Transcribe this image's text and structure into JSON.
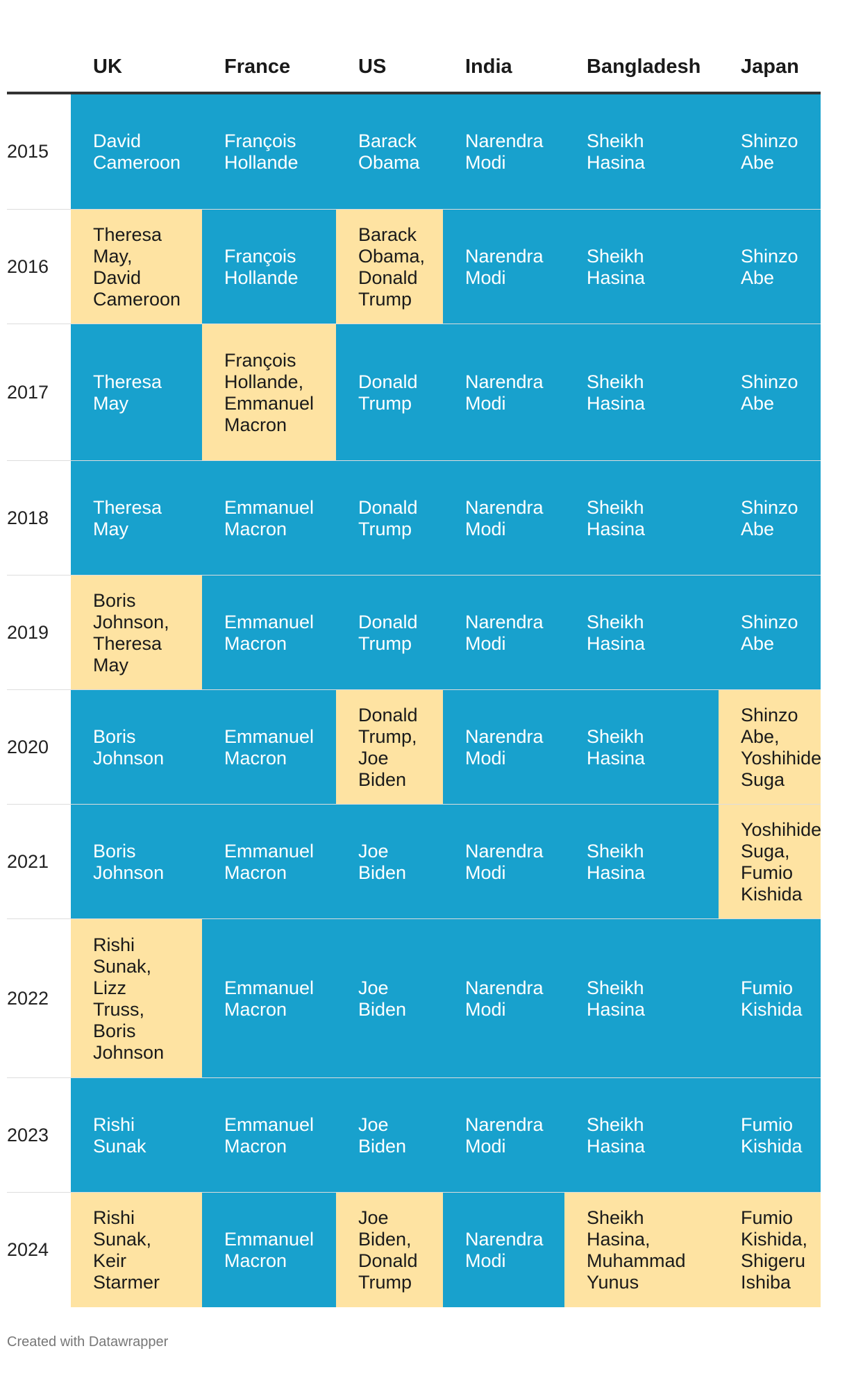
{
  "columns": [
    "UK",
    "France",
    "US",
    "India",
    "Bangladesh",
    "Japan"
  ],
  "colors": {
    "same": "#18a1cd",
    "change": "#fee3a2"
  },
  "chart_data": {
    "type": "table",
    "columns": [
      "UK",
      "France",
      "US",
      "India",
      "Bangladesh",
      "Japan"
    ],
    "rows": [
      {
        "year": "2015",
        "cells": [
          {
            "text": "David\nCameroon",
            "changed": false
          },
          {
            "text": "François\nHollande",
            "changed": false
          },
          {
            "text": "Barack\nObama",
            "changed": false
          },
          {
            "text": "Narendra\nModi",
            "changed": false
          },
          {
            "text": "Sheikh\nHasina",
            "changed": false
          },
          {
            "text": "Shinzo\nAbe",
            "changed": false
          }
        ]
      },
      {
        "year": "2016",
        "cells": [
          {
            "text": "Theresa\nMay,\nDavid\nCameroon",
            "changed": true
          },
          {
            "text": "François\nHollande",
            "changed": false
          },
          {
            "text": "Barack\nObama,\nDonald\nTrump",
            "changed": true
          },
          {
            "text": "Narendra\nModi",
            "changed": false
          },
          {
            "text": "Sheikh\nHasina",
            "changed": false
          },
          {
            "text": "Shinzo\nAbe",
            "changed": false
          }
        ]
      },
      {
        "year": "2017",
        "cells": [
          {
            "text": "Theresa\nMay",
            "changed": false
          },
          {
            "text": "François\nHollande,\nEmmanuel\nMacron",
            "changed": true
          },
          {
            "text": "Donald\nTrump",
            "changed": false
          },
          {
            "text": "Narendra\nModi",
            "changed": false
          },
          {
            "text": "Sheikh\nHasina",
            "changed": false
          },
          {
            "text": "Shinzo\nAbe",
            "changed": false
          }
        ]
      },
      {
        "year": "2018",
        "cells": [
          {
            "text": "Theresa\nMay",
            "changed": false
          },
          {
            "text": "Emmanuel\nMacron",
            "changed": false
          },
          {
            "text": "Donald\nTrump",
            "changed": false
          },
          {
            "text": "Narendra\nModi",
            "changed": false
          },
          {
            "text": "Sheikh\nHasina",
            "changed": false
          },
          {
            "text": "Shinzo\nAbe",
            "changed": false
          }
        ]
      },
      {
        "year": "2019",
        "cells": [
          {
            "text": "Boris\nJohnson,\nTheresa\nMay",
            "changed": true
          },
          {
            "text": "Emmanuel\nMacron",
            "changed": false
          },
          {
            "text": "Donald\nTrump",
            "changed": false
          },
          {
            "text": "Narendra\nModi",
            "changed": false
          },
          {
            "text": "Sheikh\nHasina",
            "changed": false
          },
          {
            "text": "Shinzo\nAbe",
            "changed": false
          }
        ]
      },
      {
        "year": "2020",
        "cells": [
          {
            "text": "Boris\nJohnson",
            "changed": false
          },
          {
            "text": "Emmanuel\nMacron",
            "changed": false
          },
          {
            "text": "Donald\nTrump,\nJoe\nBiden",
            "changed": true
          },
          {
            "text": "Narendra\nModi",
            "changed": false
          },
          {
            "text": "Sheikh\nHasina",
            "changed": false
          },
          {
            "text": "Shinzo\nAbe,\nYoshihide\nSuga",
            "changed": true
          }
        ]
      },
      {
        "year": "2021",
        "cells": [
          {
            "text": "Boris\nJohnson",
            "changed": false
          },
          {
            "text": "Emmanuel\nMacron",
            "changed": false
          },
          {
            "text": "Joe\nBiden",
            "changed": false
          },
          {
            "text": "Narendra\nModi",
            "changed": false
          },
          {
            "text": "Sheikh\nHasina",
            "changed": false
          },
          {
            "text": "Yoshihide\nSuga,\nFumio\nKishida",
            "changed": true
          }
        ]
      },
      {
        "year": "2022",
        "cells": [
          {
            "text": "Rishi\nSunak,\nLizz\nTruss,\nBoris\nJohnson",
            "changed": true
          },
          {
            "text": "Emmanuel\nMacron",
            "changed": false
          },
          {
            "text": "Joe\nBiden",
            "changed": false
          },
          {
            "text": "Narendra\nModi",
            "changed": false
          },
          {
            "text": "Sheikh\nHasina",
            "changed": false
          },
          {
            "text": "Fumio\nKishida",
            "changed": false
          }
        ]
      },
      {
        "year": "2023",
        "cells": [
          {
            "text": "Rishi\nSunak",
            "changed": false
          },
          {
            "text": "Emmanuel\nMacron",
            "changed": false
          },
          {
            "text": "Joe\nBiden",
            "changed": false
          },
          {
            "text": "Narendra\nModi",
            "changed": false
          },
          {
            "text": "Sheikh\nHasina",
            "changed": false
          },
          {
            "text": "Fumio\nKishida",
            "changed": false
          }
        ]
      },
      {
        "year": "2024",
        "cells": [
          {
            "text": "Rishi\nSunak,\nKeir\nStarmer",
            "changed": true
          },
          {
            "text": "Emmanuel\nMacron",
            "changed": false
          },
          {
            "text": "Joe\nBiden,\nDonald\nTrump",
            "changed": true
          },
          {
            "text": "Narendra\nModi",
            "changed": false
          },
          {
            "text": "Sheikh\nHasina,\nMuhammad\nYunus",
            "changed": true
          },
          {
            "text": "Fumio\nKishida,\nShigeru\nIshiba",
            "changed": true
          }
        ]
      }
    ]
  },
  "footer": "Created with Datawrapper"
}
